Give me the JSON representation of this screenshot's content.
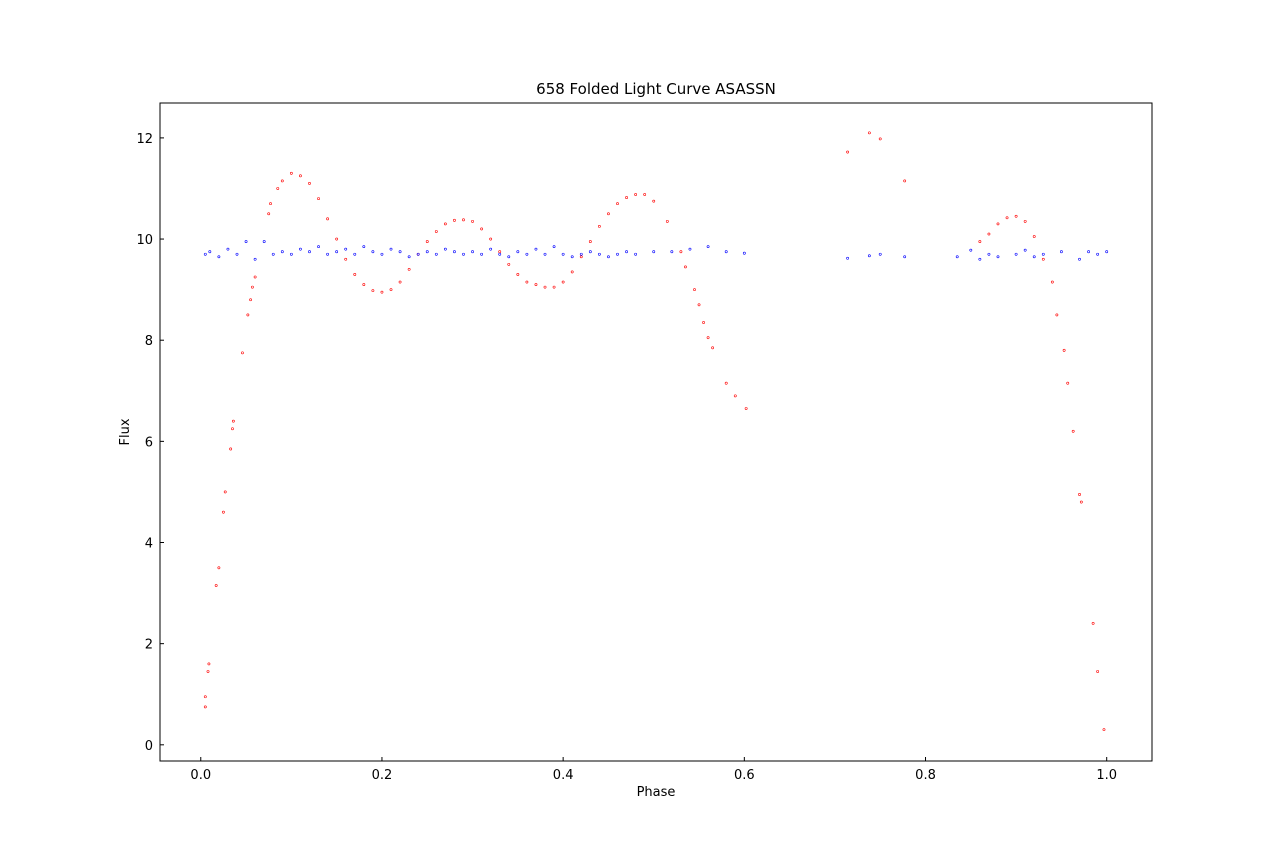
{
  "chart_data": {
    "type": "scatter",
    "title": "658 Folded Light Curve ASASSN",
    "x_label": "Phase",
    "y_label": "Flux",
    "xlim": [
      -0.045,
      1.05
    ],
    "ylim": [
      -0.32,
      12.69
    ],
    "xticks": [
      {
        "value": 0,
        "label": "0.0"
      },
      {
        "value": 0.2,
        "label": "0.2"
      },
      {
        "value": 0.4,
        "label": "0.4"
      },
      {
        "value": 0.6,
        "label": "0.6"
      },
      {
        "value": 0.8,
        "label": "0.8"
      },
      {
        "value": 1,
        "label": "1.0"
      }
    ],
    "yticks": [
      0,
      2,
      4,
      6,
      8,
      10,
      12
    ],
    "series": [
      {
        "color": "#ff0000",
        "x": [
          0.005,
          0.005,
          0.008,
          0.009,
          0.017,
          0.02,
          0.025,
          0.027,
          0.033,
          0.035,
          0.036,
          0.046,
          0.052,
          0.055,
          0.057,
          0.06,
          0.075,
          0.077,
          0.085,
          0.09,
          0.1,
          0.11,
          0.12,
          0.13,
          0.14,
          0.15,
          0.16,
          0.17,
          0.18,
          0.19,
          0.2,
          0.21,
          0.22,
          0.23,
          0.24,
          0.25,
          0.26,
          0.27,
          0.28,
          0.29,
          0.3,
          0.31,
          0.32,
          0.33,
          0.34,
          0.35,
          0.36,
          0.37,
          0.38,
          0.39,
          0.4,
          0.41,
          0.42,
          0.43,
          0.44,
          0.45,
          0.46,
          0.47,
          0.48,
          0.49,
          0.5,
          0.515,
          0.53,
          0.535,
          0.545,
          0.55,
          0.555,
          0.56,
          0.565,
          0.58,
          0.59,
          0.602,
          0.714,
          0.738,
          0.75,
          0.777,
          0.86,
          0.87,
          0.88,
          0.89,
          0.9,
          0.91,
          0.92,
          0.93,
          0.94,
          0.945,
          0.953,
          0.957,
          0.963,
          0.97,
          0.972,
          0.985,
          0.99,
          0.997
        ],
        "values": [
          0.75,
          0.95,
          1.45,
          1.6,
          3.15,
          3.5,
          4.6,
          5.0,
          5.85,
          6.25,
          6.4,
          7.75,
          8.5,
          8.8,
          9.05,
          9.25,
          10.5,
          10.7,
          11.0,
          11.15,
          11.3,
          11.25,
          11.1,
          10.8,
          10.4,
          10.0,
          9.6,
          9.3,
          9.1,
          8.98,
          8.95,
          9.0,
          9.15,
          9.4,
          9.7,
          9.95,
          10.15,
          10.3,
          10.37,
          10.38,
          10.35,
          10.2,
          10.0,
          9.75,
          9.5,
          9.3,
          9.15,
          9.1,
          9.05,
          9.05,
          9.15,
          9.35,
          9.65,
          9.95,
          10.25,
          10.5,
          10.7,
          10.82,
          10.88,
          10.88,
          10.75,
          10.35,
          9.75,
          9.45,
          9.0,
          8.7,
          8.35,
          8.05,
          7.85,
          7.15,
          6.9,
          6.65,
          11.72,
          12.1,
          11.98,
          11.15,
          9.95,
          10.1,
          10.3,
          10.42,
          10.45,
          10.35,
          10.05,
          9.6,
          9.15,
          8.5,
          7.8,
          7.15,
          6.2,
          4.95,
          4.8,
          2.4,
          1.45,
          0.3
        ]
      },
      {
        "color": "#0000ff",
        "x": [
          0.005,
          0.01,
          0.02,
          0.03,
          0.04,
          0.05,
          0.06,
          0.07,
          0.08,
          0.09,
          0.1,
          0.11,
          0.12,
          0.13,
          0.14,
          0.15,
          0.16,
          0.17,
          0.18,
          0.19,
          0.2,
          0.21,
          0.22,
          0.23,
          0.24,
          0.25,
          0.26,
          0.27,
          0.28,
          0.29,
          0.3,
          0.31,
          0.32,
          0.33,
          0.34,
          0.35,
          0.36,
          0.37,
          0.38,
          0.39,
          0.4,
          0.41,
          0.42,
          0.43,
          0.44,
          0.45,
          0.46,
          0.47,
          0.48,
          0.5,
          0.52,
          0.54,
          0.56,
          0.58,
          0.6,
          0.714,
          0.738,
          0.75,
          0.777,
          0.835,
          0.85,
          0.86,
          0.87,
          0.88,
          0.9,
          0.91,
          0.92,
          0.93,
          0.95,
          0.97,
          0.98,
          0.99,
          1.0
        ],
        "values": [
          9.7,
          9.75,
          9.65,
          9.8,
          9.7,
          9.95,
          9.6,
          9.95,
          9.7,
          9.75,
          9.7,
          9.8,
          9.75,
          9.85,
          9.7,
          9.75,
          9.8,
          9.7,
          9.85,
          9.75,
          9.7,
          9.8,
          9.75,
          9.65,
          9.7,
          9.75,
          9.7,
          9.8,
          9.75,
          9.7,
          9.75,
          9.7,
          9.8,
          9.7,
          9.65,
          9.75,
          9.7,
          9.8,
          9.7,
          9.85,
          9.7,
          9.65,
          9.7,
          9.75,
          9.7,
          9.65,
          9.7,
          9.75,
          9.7,
          9.75,
          9.75,
          9.8,
          9.85,
          9.75,
          9.72,
          9.62,
          9.67,
          9.7,
          9.65,
          9.65,
          9.78,
          9.6,
          9.7,
          9.65,
          9.7,
          9.78,
          9.65,
          9.7,
          9.75,
          9.6,
          9.75,
          9.7,
          9.75
        ]
      }
    ]
  }
}
